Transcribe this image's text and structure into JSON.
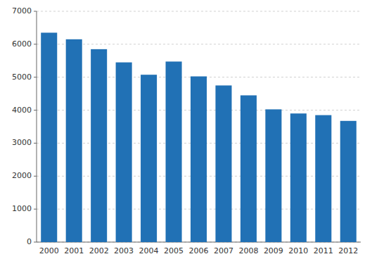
{
  "chart_data": {
    "type": "bar",
    "categories": [
      "2000",
      "2001",
      "2002",
      "2003",
      "2004",
      "2005",
      "2006",
      "2007",
      "2008",
      "2009",
      "2010",
      "2011",
      "2012"
    ],
    "values": [
      6350,
      6150,
      5850,
      5450,
      5075,
      5475,
      5025,
      4750,
      4450,
      4025,
      3900,
      3850,
      3675
    ],
    "color": "#2171b5",
    "ylim": [
      0,
      7000
    ],
    "yticks": [
      0,
      1000,
      2000,
      3000,
      4000,
      5000,
      6000,
      7000
    ],
    "grid": true
  }
}
